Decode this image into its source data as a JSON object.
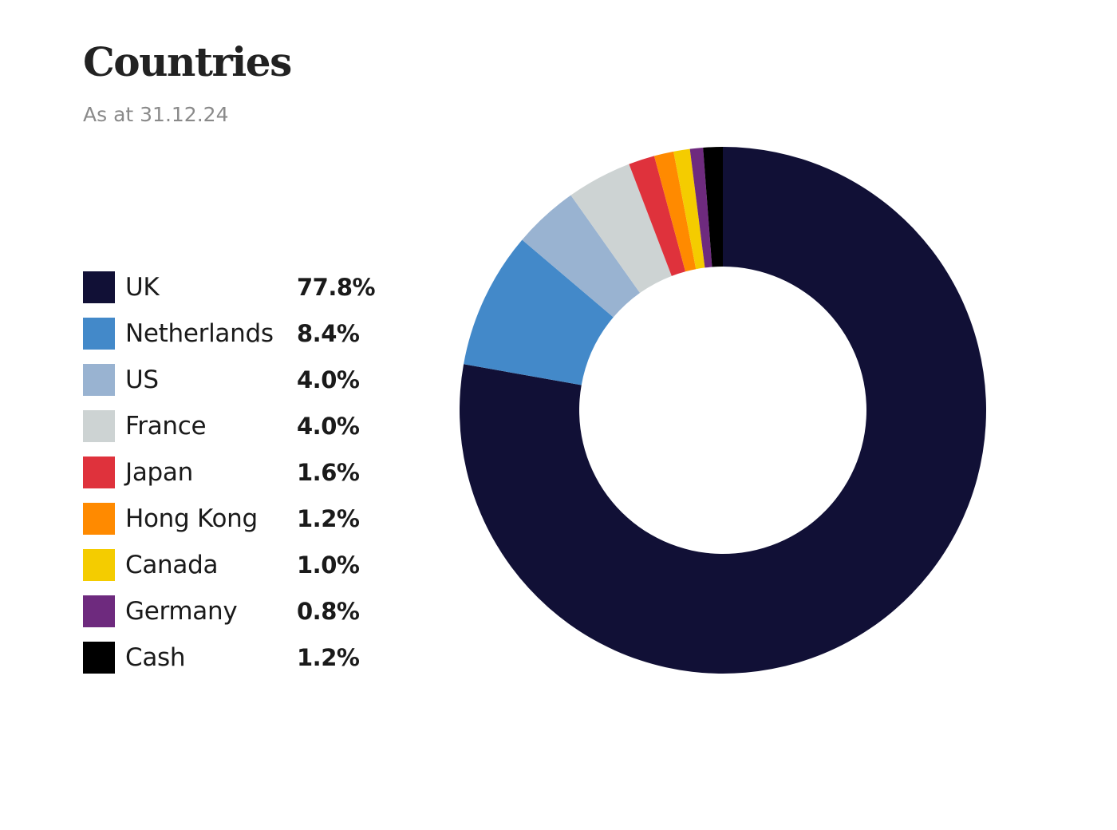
{
  "chart_data": {
    "type": "pie",
    "style": "donut",
    "title": "Countries",
    "subtitle": "As at 31.12.24",
    "legend_position": "left",
    "slices": [
      {
        "label": "UK",
        "value": 77.8,
        "value_label": "77.8%",
        "color": "#111036"
      },
      {
        "label": "Netherlands",
        "value": 8.4,
        "value_label": "8.4%",
        "color": "#4389c9"
      },
      {
        "label": "US",
        "value": 4.0,
        "value_label": "4.0%",
        "color": "#99b3d1"
      },
      {
        "label": "France",
        "value": 4.0,
        "value_label": "4.0%",
        "color": "#cdd3d3"
      },
      {
        "label": "Japan",
        "value": 1.6,
        "value_label": "1.6%",
        "color": "#df323c"
      },
      {
        "label": "Hong Kong",
        "value": 1.2,
        "value_label": "1.2%",
        "color": "#ff8a00"
      },
      {
        "label": "Canada",
        "value": 1.0,
        "value_label": "1.0%",
        "color": "#f4cc00"
      },
      {
        "label": "Germany",
        "value": 0.8,
        "value_label": "0.8%",
        "color": "#6e2a7e"
      },
      {
        "label": "Cash",
        "value": 1.2,
        "value_label": "1.2%",
        "color": "#000000"
      }
    ]
  }
}
